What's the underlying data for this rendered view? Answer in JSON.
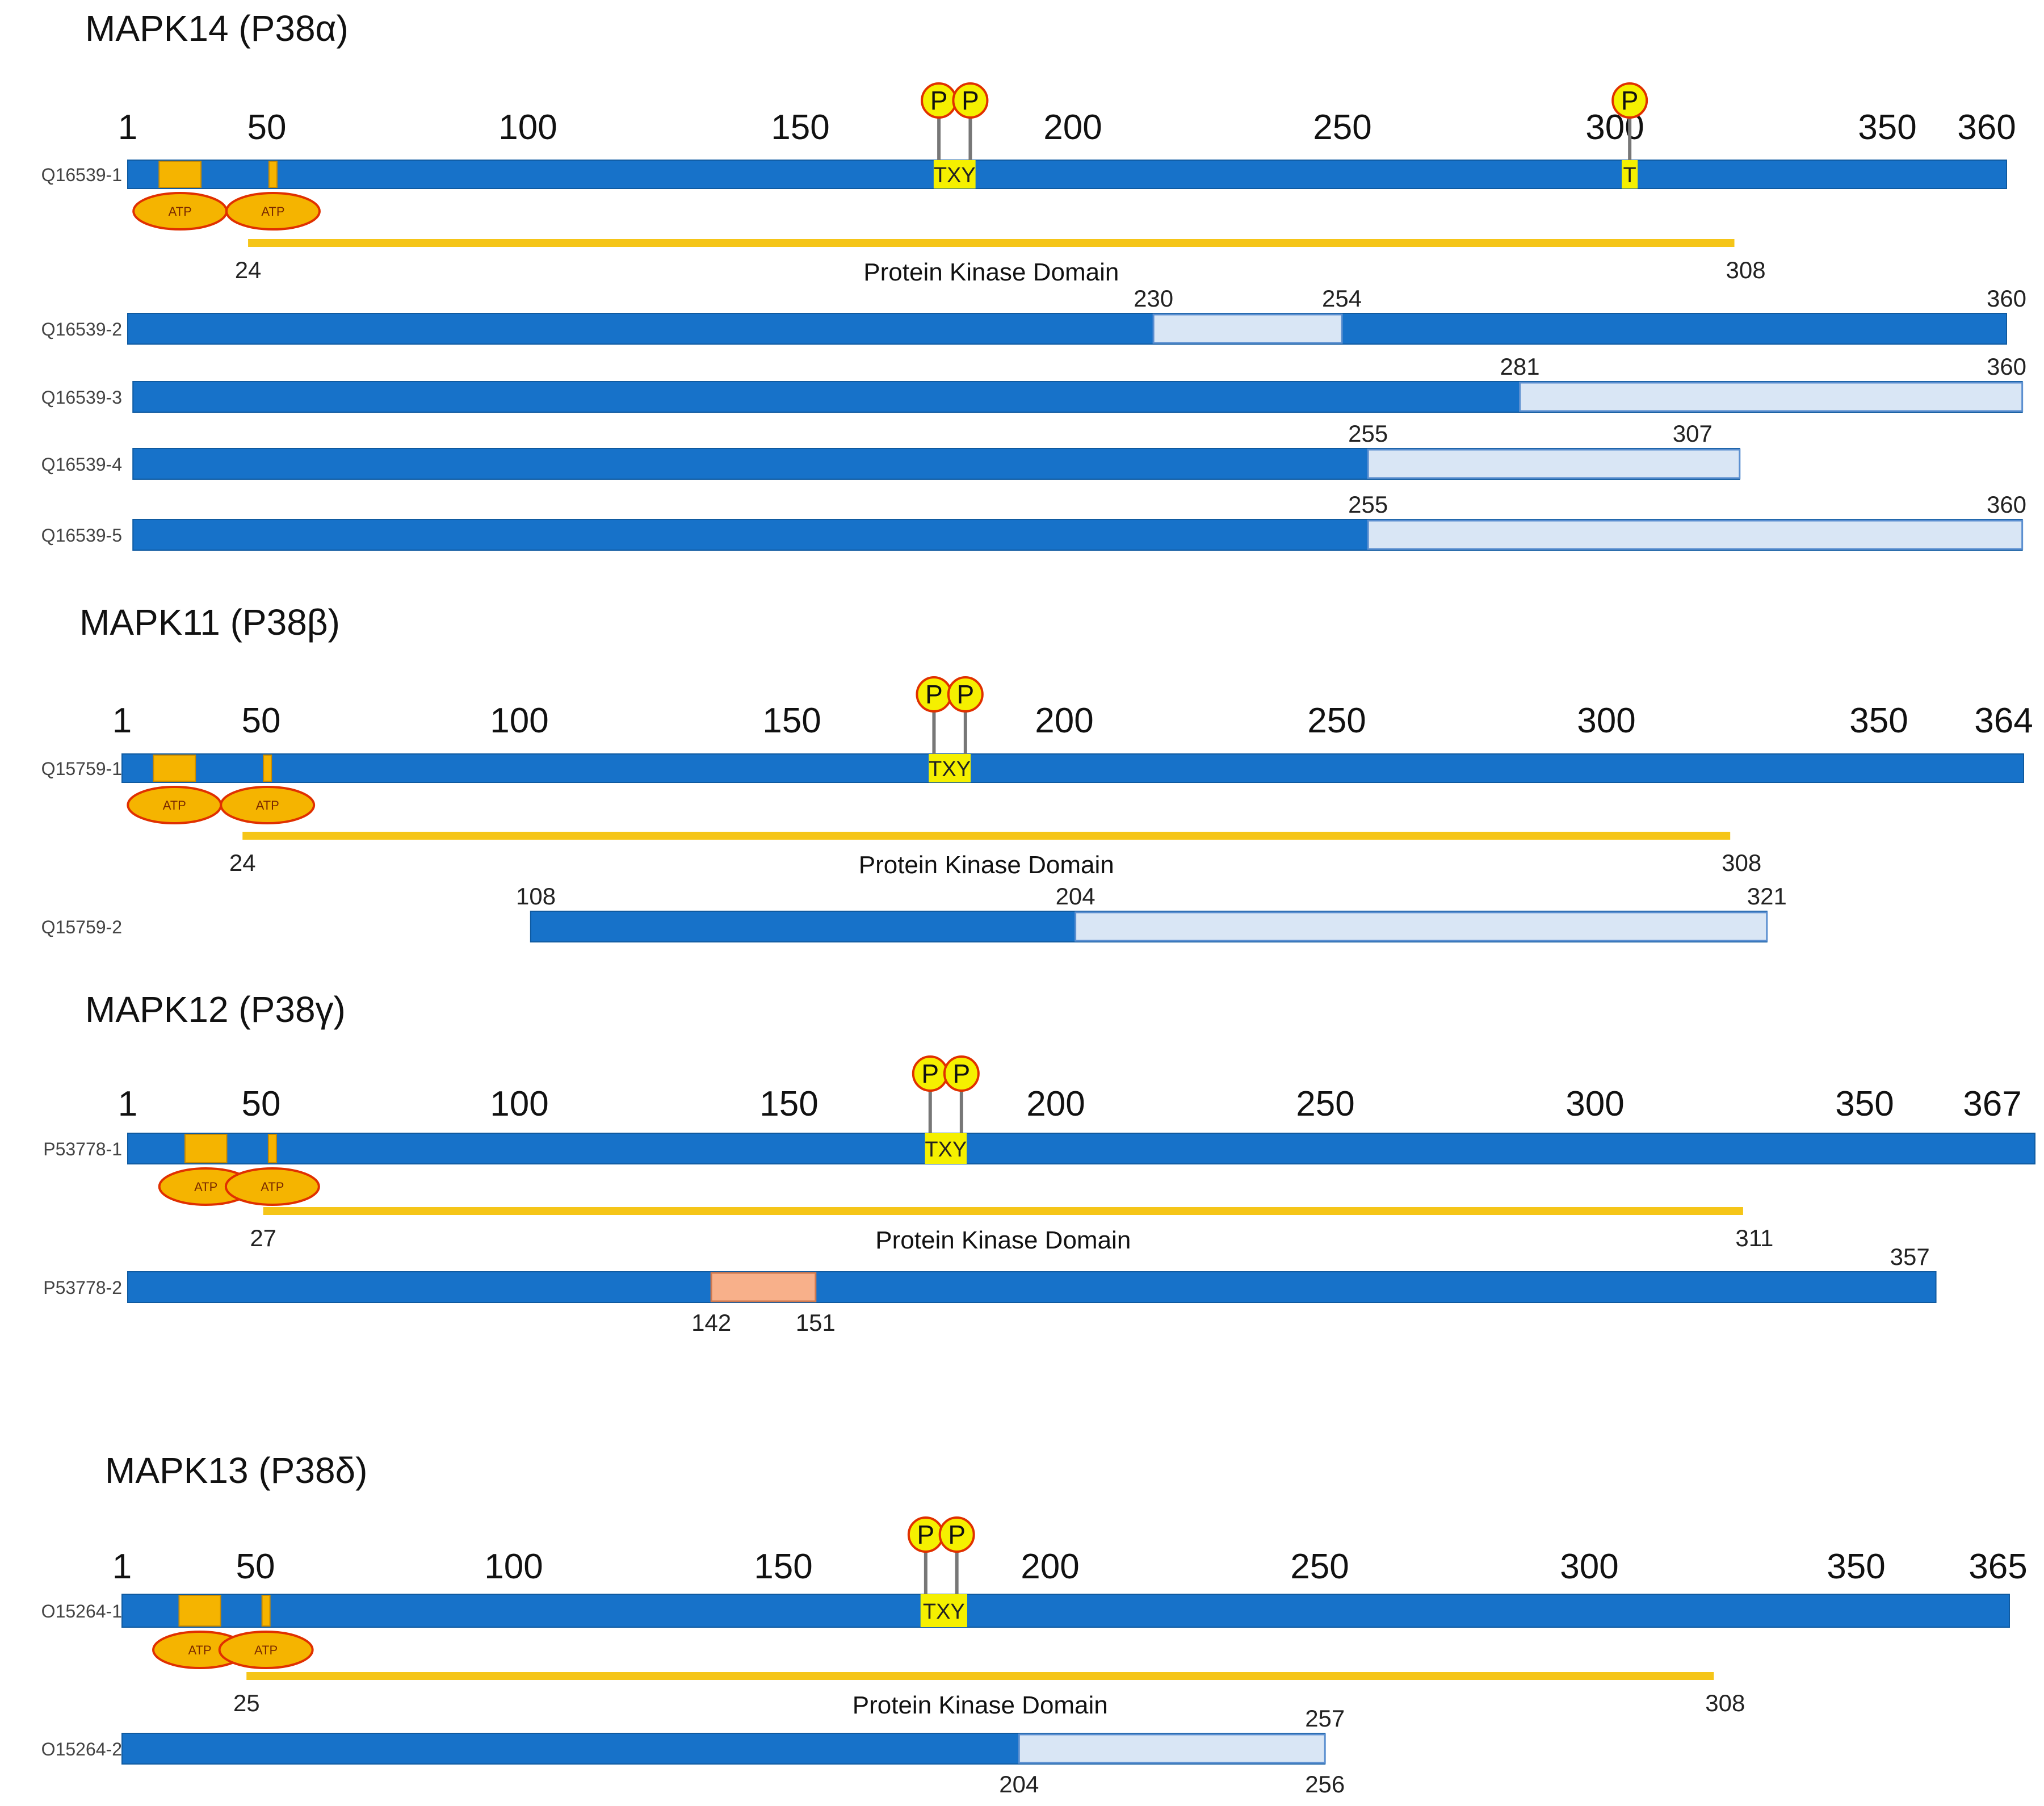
{
  "colors": {
    "protein": "#1772c9",
    "spliced": "#d9e6f5",
    "splicedBorder": "#5b8fd0",
    "atp": "#f5b400",
    "atpOval": "#f5b400",
    "atpBorder": "#e03000",
    "txy": "#f5f000",
    "domain": "#f5c518",
    "insertion": "#f8b08a",
    "phospho": "#f5f000",
    "phosphoBorder": "#e03000"
  },
  "kinases": [
    {
      "title": "MAPK14 (P38α)",
      "length": 360,
      "ticks": [
        "1",
        "50",
        "100",
        "150",
        "200",
        "250",
        "300",
        "350",
        "360"
      ],
      "main": {
        "id": "Q16539-1",
        "atp_sites": [
          {
            "start": 7,
            "end": 15
          },
          {
            "start": 28,
            "end": 29
          }
        ],
        "atp_label": "ATP",
        "txy": {
          "start": 155,
          "end": 163,
          "label": "TXY"
        },
        "phospho": [
          {
            "pos": 156,
            "label": "P"
          },
          {
            "pos": 162,
            "label": "P"
          },
          {
            "pos": 288,
            "label": "P",
            "residue": "T"
          }
        ]
      },
      "domain": {
        "start": 24,
        "end": 308,
        "start_label": "24",
        "end_label": "308",
        "label": "Protein Kinase Domain"
      },
      "isoforms": [
        {
          "id": "Q16539-2",
          "start": 1,
          "end": 360,
          "segments": [
            {
              "start": 197,
              "end": 233,
              "type": "spliced"
            }
          ],
          "labels": [
            {
              "text": "230",
              "at": 197,
              "pos": "above"
            },
            {
              "text": "254",
              "at": 233,
              "pos": "above"
            },
            {
              "text": "360",
              "at": 360,
              "pos": "above"
            }
          ]
        },
        {
          "id": "Q16539-3",
          "start": 2,
          "end": 363,
          "segments": [
            {
              "start": 267,
              "end": 363,
              "type": "spliced"
            }
          ],
          "labels": [
            {
              "text": "281",
              "at": 267,
              "pos": "above"
            },
            {
              "text": "360",
              "at": 360,
              "pos": "above"
            }
          ]
        },
        {
          "id": "Q16539-4",
          "start": 2,
          "end": 309,
          "segments": [
            {
              "start": 238,
              "end": 309,
              "type": "spliced"
            }
          ],
          "labels": [
            {
              "text": "255",
              "at": 238,
              "pos": "above"
            },
            {
              "text": "307",
              "at": 300,
              "pos": "above"
            }
          ]
        },
        {
          "id": "Q16539-5",
          "start": 2,
          "end": 363,
          "segments": [
            {
              "start": 238,
              "end": 363,
              "type": "spliced"
            }
          ],
          "labels": [
            {
              "text": "255",
              "at": 238,
              "pos": "above"
            },
            {
              "text": "360",
              "at": 360,
              "pos": "above"
            }
          ]
        }
      ]
    },
    {
      "title": "MAPK11 (P38β)",
      "length": 364,
      "ticks": [
        "1",
        "50",
        "100",
        "150",
        "200",
        "250",
        "300",
        "350",
        "364"
      ],
      "main": {
        "id": "Q15759-1",
        "atp_sites": [
          {
            "start": 7,
            "end": 15
          },
          {
            "start": 28,
            "end": 29
          }
        ],
        "atp_label": "ATP",
        "txy": {
          "start": 155,
          "end": 163,
          "label": "TXY"
        },
        "phospho": [
          {
            "pos": 156,
            "label": "P"
          },
          {
            "pos": 162,
            "label": "P"
          }
        ]
      },
      "domain": {
        "start": 24,
        "end": 308,
        "start_label": "24",
        "end_label": "308",
        "label": "Protein Kinase Domain"
      },
      "isoforms": [
        {
          "id": "Q15759-2",
          "start": 79,
          "end": 315,
          "segments": [
            {
              "start": 183,
              "end": 315,
              "type": "spliced"
            }
          ],
          "labels": [
            {
              "text": "108",
              "at": 80,
              "pos": "above"
            },
            {
              "text": "204",
              "at": 183,
              "pos": "above"
            },
            {
              "text": "321",
              "at": 315,
              "pos": "above"
            }
          ]
        }
      ]
    },
    {
      "title": "MAPK12 (P38γ)",
      "length": 367,
      "ticks": [
        "1",
        "50",
        "100",
        "150",
        "200",
        "250",
        "300",
        "350",
        "367"
      ],
      "main": {
        "id": "P53778-1",
        "atp_sites": [
          {
            "start": 12,
            "end": 20
          },
          {
            "start": 28,
            "end": 29
          }
        ],
        "atp_label": "ATP",
        "txy": {
          "start": 154,
          "end": 162,
          "label": "TXY"
        },
        "phospho": [
          {
            "pos": 155,
            "label": "P"
          },
          {
            "pos": 161,
            "label": "P"
          }
        ]
      },
      "domain": {
        "start": 27,
        "end": 311,
        "start_label": "27",
        "end_label": "311",
        "label": "Protein Kinase Domain"
      },
      "isoforms": [
        {
          "id": "P53778-2",
          "start": 1,
          "end": 348,
          "segments": [
            {
              "start": 113,
              "end": 133,
              "type": "insertion"
            }
          ],
          "labels": [
            {
              "text": "142",
              "at": 113,
              "pos": "below"
            },
            {
              "text": "151",
              "at": 133,
              "pos": "below"
            },
            {
              "text": "357",
              "at": 343,
              "pos": "above"
            }
          ]
        }
      ]
    },
    {
      "title": "MAPK13 (P38δ)",
      "length": 365,
      "ticks": [
        "1",
        "50",
        "100",
        "150",
        "200",
        "250",
        "300",
        "350",
        "365"
      ],
      "main": {
        "id": "O15264-1",
        "atp_sites": [
          {
            "start": 12,
            "end": 20
          },
          {
            "start": 28,
            "end": 29
          }
        ],
        "atp_label": "ATP",
        "txy": {
          "start": 155,
          "end": 164,
          "label": "TXY"
        },
        "phospho": [
          {
            "pos": 156,
            "label": "P"
          },
          {
            "pos": 162,
            "label": "P"
          }
        ]
      },
      "domain": {
        "start": 25,
        "end": 308,
        "start_label": "25",
        "end_label": "308",
        "label": "Protein Kinase Domain"
      },
      "isoforms": [
        {
          "id": "O15264-2",
          "start": 1,
          "end": 233,
          "segments": [
            {
              "start": 174,
              "end": 233,
              "type": "spliced"
            }
          ],
          "labels": [
            {
              "text": "204",
              "at": 174,
              "pos": "below"
            },
            {
              "text": "256",
              "at": 233,
              "pos": "below"
            },
            {
              "text": "257",
              "at": 233,
              "pos": "above"
            }
          ]
        }
      ]
    }
  ]
}
